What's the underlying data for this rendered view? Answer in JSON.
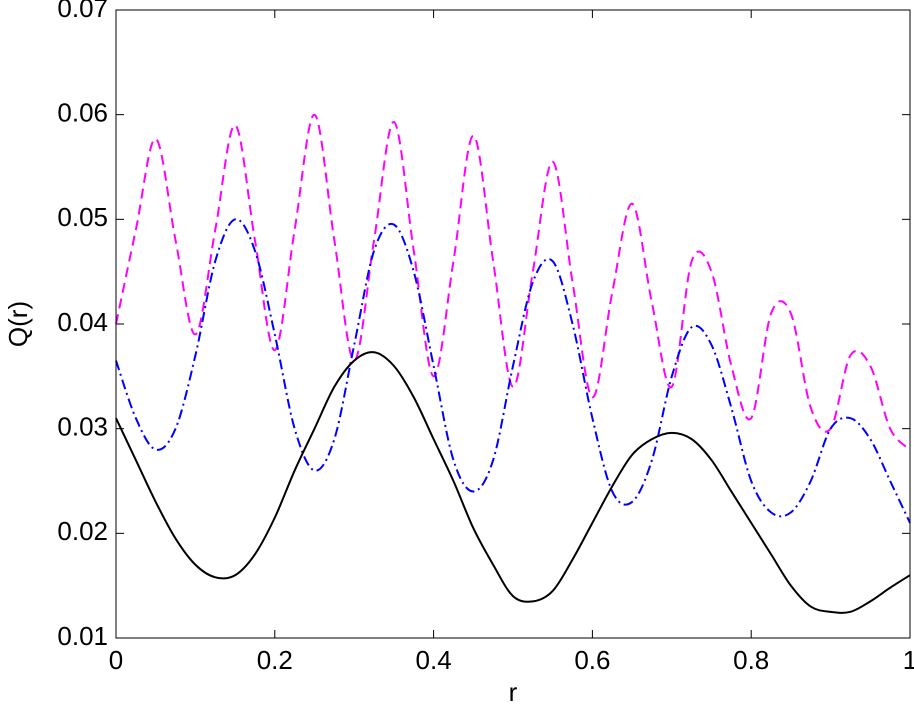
{
  "chart_data": {
    "type": "line",
    "x_label": "r",
    "y_label": "Q(r)",
    "x": [
      0,
      0.025,
      0.05,
      0.075,
      0.1,
      0.125,
      0.15,
      0.175,
      0.2,
      0.225,
      0.25,
      0.275,
      0.3,
      0.325,
      0.35,
      0.375,
      0.4,
      0.425,
      0.45,
      0.475,
      0.5,
      0.525,
      0.55,
      0.575,
      0.6,
      0.625,
      0.65,
      0.675,
      0.7,
      0.725,
      0.75,
      0.775,
      0.8,
      0.825,
      0.85,
      0.875,
      0.9,
      0.925,
      0.95,
      0.975,
      1
    ],
    "series": [
      {
        "color": "#ff00ff",
        "dash": "10,6",
        "values": [
          0.04,
          0.049,
          0.0577,
          0.048,
          0.039,
          0.049,
          0.059,
          0.048,
          0.0375,
          0.049,
          0.06,
          0.048,
          0.0365,
          0.048,
          0.0593,
          0.047,
          0.035,
          0.046,
          0.058,
          0.046,
          0.034,
          0.045,
          0.0555,
          0.044,
          0.033,
          0.043,
          0.0515,
          0.042,
          0.034,
          0.046,
          0.045,
          0.036,
          0.031,
          0.041,
          0.041,
          0.032,
          0.03,
          0.037,
          0.036,
          0.03,
          0.028
        ]
      },
      {
        "color": "#0000ff",
        "dash": "10,4,2,4",
        "values": [
          0.0365,
          0.031,
          0.028,
          0.03,
          0.037,
          0.046,
          0.05,
          0.047,
          0.039,
          0.03,
          0.026,
          0.029,
          0.038,
          0.047,
          0.0495,
          0.045,
          0.036,
          0.027,
          0.024,
          0.027,
          0.036,
          0.044,
          0.046,
          0.04,
          0.031,
          0.024,
          0.023,
          0.027,
          0.035,
          0.0397,
          0.038,
          0.032,
          0.025,
          0.022,
          0.022,
          0.025,
          0.03,
          0.031,
          0.029,
          0.025,
          0.021
        ]
      },
      {
        "color": "#000000",
        "dash": "none",
        "values": [
          0.031,
          0.027,
          0.023,
          0.0195,
          0.017,
          0.0158,
          0.016,
          0.018,
          0.0215,
          0.026,
          0.03,
          0.034,
          0.0365,
          0.0373,
          0.036,
          0.033,
          0.029,
          0.025,
          0.0205,
          0.017,
          0.014,
          0.0135,
          0.0145,
          0.0175,
          0.021,
          0.0245,
          0.0275,
          0.029,
          0.0296,
          0.029,
          0.027,
          0.024,
          0.021,
          0.018,
          0.015,
          0.013,
          0.0125,
          0.0125,
          0.0135,
          0.0148,
          0.016
        ]
      }
    ],
    "xlim": [
      0,
      1
    ],
    "xticks": [
      0,
      0.2,
      0.4,
      0.6,
      0.8,
      1
    ],
    "ylim": [
      0.01,
      0.07
    ],
    "yticks": [
      0.01,
      0.02,
      0.03,
      0.04,
      0.05,
      0.06,
      0.07
    ]
  }
}
